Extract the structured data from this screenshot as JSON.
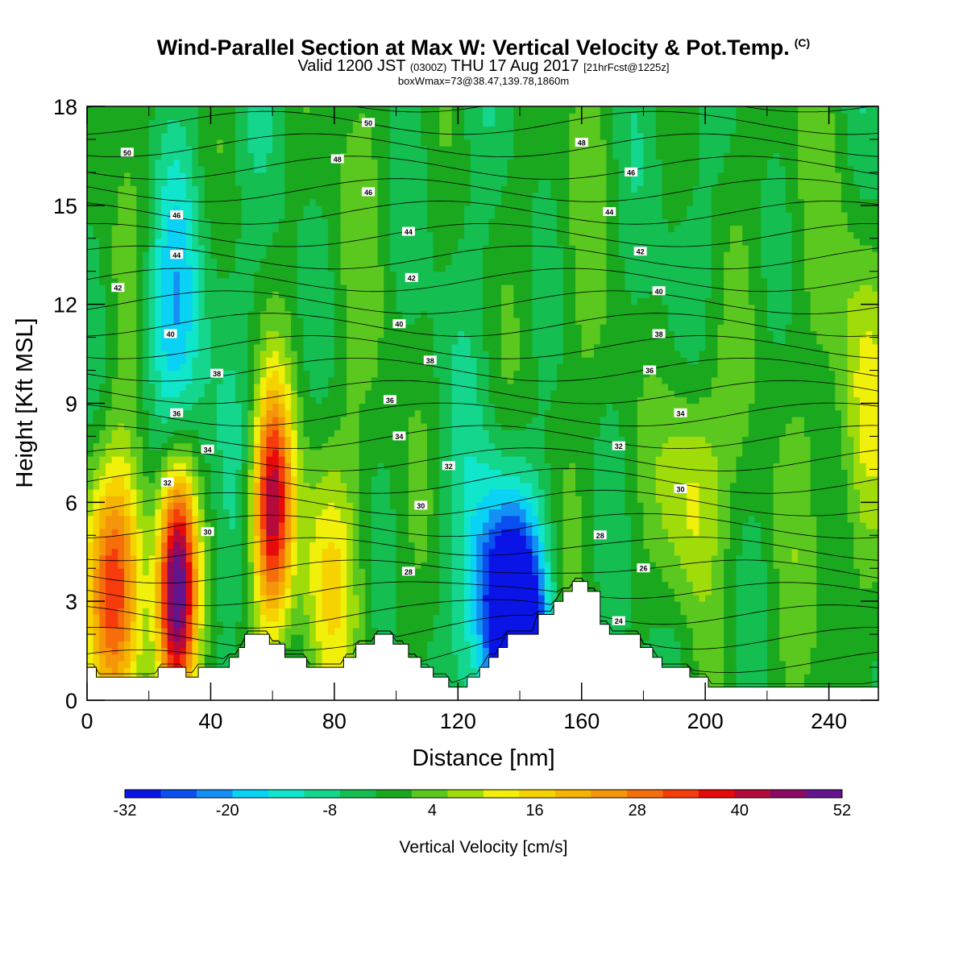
{
  "title": "Wind-Parallel Section at Max W: Vertical Velocity & Pot.Temp.",
  "title_mark": "(C)",
  "subtitle": {
    "valid_prefix": "Valid 1200 JST",
    "utc": "(0300Z)",
    "date": "THU 17 Aug 2017",
    "forecast": "[21hrFcst@1225z]"
  },
  "info": "boxWmax=73@38.47,139.78,1860m",
  "chart_data": {
    "type": "heatmap",
    "xlabel": "Distance [nm]",
    "ylabel": "Height [Kft MSL]",
    "xlim": [
      0,
      256
    ],
    "ylim": [
      0,
      18
    ],
    "x_ticks": [
      "0",
      "40",
      "80",
      "120",
      "160",
      "200",
      "240"
    ],
    "y_ticks": [
      "0",
      "3",
      "6",
      "9",
      "12",
      "15",
      "18"
    ],
    "colorbar": {
      "label": "Vertical Velocity [cm/s]",
      "tick_labels": [
        "-32",
        "-20",
        "-8",
        "4",
        "16",
        "28",
        "40",
        "52"
      ],
      "min": -32,
      "max": 52,
      "step": 4,
      "colors": [
        "#0a14e6",
        "#0a50f0",
        "#1490f5",
        "#0ad2f5",
        "#10e6cc",
        "#14d68c",
        "#14be50",
        "#1aa81e",
        "#5ac81e",
        "#a0dc0a",
        "#f0f00a",
        "#f5d200",
        "#f5b400",
        "#f5960a",
        "#f56e0a",
        "#f53c0a",
        "#e60a0a",
        "#b40a3c",
        "#8c0a64",
        "#64148c"
      ]
    },
    "velocity_features": [
      {
        "x": 9,
        "z": 3.6,
        "w": 30
      },
      {
        "x": 29,
        "z": 3.4,
        "w": 52
      },
      {
        "x": 60,
        "z": 5.8,
        "w": 42
      },
      {
        "x": 77,
        "z": 3.8,
        "w": 12
      },
      {
        "x": 141,
        "z": 2.2,
        "w": -30
      },
      {
        "x": 28,
        "z": 10.8,
        "w": -16
      },
      {
        "x": 196,
        "z": 6.5,
        "w": 16
      },
      {
        "x": 251,
        "z": 9.0,
        "w": 12
      },
      {
        "x": 132,
        "z": 3.0,
        "w": -20
      }
    ],
    "isentrope_labels": [
      {
        "text": "50",
        "x": 13,
        "z": 16.6
      },
      {
        "text": "50",
        "x": 91,
        "z": 17.5
      },
      {
        "text": "48",
        "x": 81,
        "z": 16.4
      },
      {
        "text": "48",
        "x": 160,
        "z": 16.9
      },
      {
        "text": "46",
        "x": 29,
        "z": 14.7
      },
      {
        "text": "46",
        "x": 91,
        "z": 15.4
      },
      {
        "text": "46",
        "x": 176,
        "z": 16.0
      },
      {
        "text": "44",
        "x": 29,
        "z": 13.5
      },
      {
        "text": "44",
        "x": 104,
        "z": 14.2
      },
      {
        "text": "44",
        "x": 169,
        "z": 14.8
      },
      {
        "text": "42",
        "x": 10,
        "z": 12.5
      },
      {
        "text": "42",
        "x": 105,
        "z": 12.8
      },
      {
        "text": "42",
        "x": 179,
        "z": 13.6
      },
      {
        "text": "40",
        "x": 27,
        "z": 11.1
      },
      {
        "text": "40",
        "x": 101,
        "z": 11.4
      },
      {
        "text": "40",
        "x": 185,
        "z": 12.4
      },
      {
        "text": "38",
        "x": 42,
        "z": 9.9
      },
      {
        "text": "38",
        "x": 111,
        "z": 10.3
      },
      {
        "text": "38",
        "x": 185,
        "z": 11.1
      },
      {
        "text": "36",
        "x": 29,
        "z": 8.7
      },
      {
        "text": "36",
        "x": 98,
        "z": 9.1
      },
      {
        "text": "36",
        "x": 182,
        "z": 10.0
      },
      {
        "text": "34",
        "x": 39,
        "z": 7.6
      },
      {
        "text": "34",
        "x": 101,
        "z": 8.0
      },
      {
        "text": "34",
        "x": 192,
        "z": 8.7
      },
      {
        "text": "32",
        "x": 26,
        "z": 6.6
      },
      {
        "text": "32",
        "x": 117,
        "z": 7.1
      },
      {
        "text": "32",
        "x": 172,
        "z": 7.7
      },
      {
        "text": "30",
        "x": 39,
        "z": 5.1
      },
      {
        "text": "30",
        "x": 108,
        "z": 5.9
      },
      {
        "text": "30",
        "x": 192,
        "z": 6.4
      },
      {
        "text": "28",
        "x": 104,
        "z": 3.9
      },
      {
        "text": "28",
        "x": 166,
        "z": 5.0
      },
      {
        "text": "26",
        "x": 180,
        "z": 4.0
      },
      {
        "text": "24",
        "x": 172,
        "z": 2.4
      }
    ],
    "terrain": [
      [
        0,
        1.0
      ],
      [
        3,
        1.0
      ],
      [
        3,
        0.7
      ],
      [
        15,
        0.7
      ],
      [
        15,
        0.7
      ],
      [
        23,
        0.7
      ],
      [
        23,
        1.0
      ],
      [
        32,
        1.0
      ],
      [
        32,
        0.7
      ],
      [
        36,
        0.7
      ],
      [
        36,
        1.0
      ],
      [
        46,
        1.0
      ],
      [
        46,
        1.3
      ],
      [
        49,
        1.3
      ],
      [
        49,
        1.6
      ],
      [
        51,
        1.6
      ],
      [
        51,
        2.0
      ],
      [
        59,
        2.0
      ],
      [
        59,
        1.7
      ],
      [
        64,
        1.7
      ],
      [
        64,
        1.3
      ],
      [
        71,
        1.3
      ],
      [
        71,
        1.0
      ],
      [
        83,
        1.0
      ],
      [
        83,
        1.3
      ],
      [
        87,
        1.3
      ],
      [
        87,
        1.7
      ],
      [
        93,
        1.7
      ],
      [
        93,
        2.0
      ],
      [
        99,
        2.0
      ],
      [
        99,
        1.7
      ],
      [
        104,
        1.7
      ],
      [
        104,
        1.3
      ],
      [
        108,
        1.3
      ],
      [
        108,
        1.0
      ],
      [
        112,
        1.0
      ],
      [
        112,
        0.7
      ],
      [
        117,
        0.7
      ],
      [
        117,
        0.4
      ],
      [
        123,
        0.4
      ],
      [
        123,
        0.7
      ],
      [
        127,
        0.7
      ],
      [
        127,
        1.0
      ],
      [
        130,
        1.0
      ],
      [
        130,
        1.3
      ],
      [
        133,
        1.3
      ],
      [
        133,
        1.6
      ],
      [
        136,
        1.6
      ],
      [
        136,
        2.0
      ],
      [
        146,
        2.0
      ],
      [
        146,
        2.6
      ],
      [
        151,
        2.6
      ],
      [
        151,
        3.0
      ],
      [
        154,
        3.0
      ],
      [
        154,
        3.3
      ],
      [
        157,
        3.3
      ],
      [
        157,
        3.6
      ],
      [
        162,
        3.6
      ],
      [
        162,
        3.3
      ],
      [
        166,
        3.3
      ],
      [
        166,
        2.3
      ],
      [
        169,
        2.3
      ],
      [
        169,
        2.0
      ],
      [
        179,
        2.0
      ],
      [
        179,
        1.6
      ],
      [
        183,
        1.6
      ],
      [
        183,
        1.3
      ],
      [
        186,
        1.3
      ],
      [
        186,
        1.0
      ],
      [
        195,
        1.0
      ],
      [
        195,
        0.7
      ],
      [
        201,
        0.7
      ],
      [
        201,
        0.4
      ],
      [
        256,
        0.4
      ]
    ]
  }
}
